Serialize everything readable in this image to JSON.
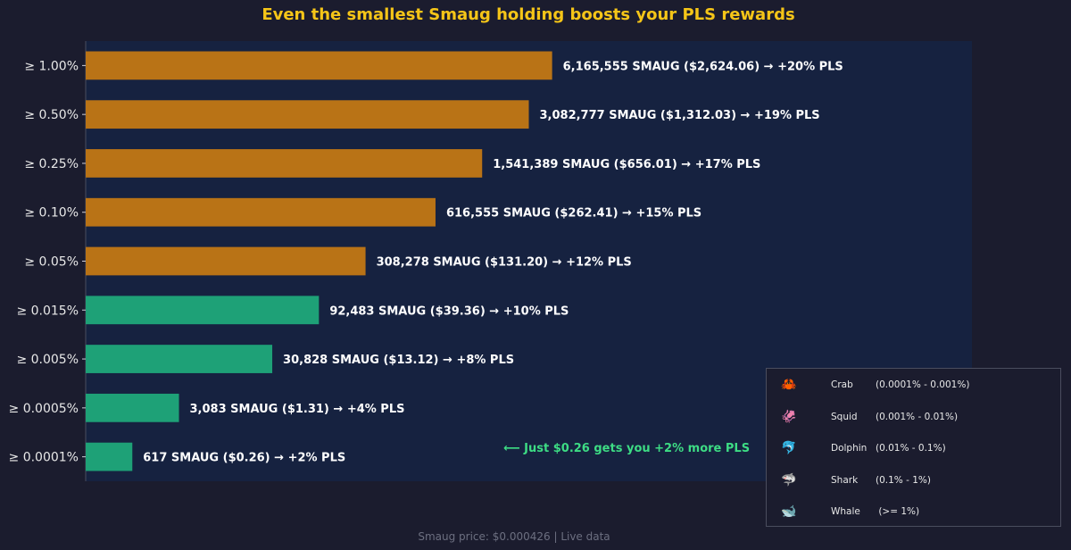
{
  "chart_data": {
    "type": "bar",
    "orientation": "horizontal",
    "title": "Even the smallest Smaug holding boosts your PLS rewards",
    "categories": [
      "≥ 1.00%",
      "≥ 0.50%",
      "≥ 0.25%",
      "≥ 0.10%",
      "≥ 0.05%",
      "≥ 0.015%",
      "≥ 0.005%",
      "≥ 0.0005%",
      "≥ 0.0001%"
    ],
    "values": [
      20,
      19,
      17,
      15,
      12,
      10,
      8,
      4,
      2
    ],
    "bar_labels": [
      "6,165,555 SMAUG ($2,624.06)  →  +20% PLS",
      "3,082,777 SMAUG ($1,312.03)  →  +19% PLS",
      "1,541,389 SMAUG ($656.01)  →  +17% PLS",
      "616,555 SMAUG ($262.41)  →  +15% PLS",
      "308,278 SMAUG ($131.20)  →  +12% PLS",
      "92,483 SMAUG ($39.36)  →  +10% PLS",
      "30,828 SMAUG ($13.12)  →  +8% PLS",
      "3,083 SMAUG ($1.31)  →  +4% PLS",
      "617 SMAUG ($0.26)  →  +2% PLS"
    ],
    "bar_colors": [
      "#b97316",
      "#b97316",
      "#b97316",
      "#b97316",
      "#b97316",
      "#1ea177",
      "#1ea177",
      "#1ea177",
      "#1ea177"
    ],
    "xlim": [
      0,
      38
    ],
    "annotation": "⟵  Just $0.26 gets you +2% more PLS",
    "annotation_color": "#3ddc84",
    "plot_background": "#162240",
    "title_color": "#f5c518"
  },
  "legend": {
    "placement": "bottom-right",
    "items": [
      {
        "icon": "🦀",
        "name": "Crab",
        "range": "(0.0001% - 0.001%)"
      },
      {
        "icon": "🦑",
        "name": "Squid",
        "range": "(0.001% - 0.01%)"
      },
      {
        "icon": "🐬",
        "name": "Dolphin",
        "range": "(0.01% - 0.1%)"
      },
      {
        "icon": "🦈",
        "name": "Shark",
        "range": "(0.1% - 1%)"
      },
      {
        "icon": "🐋",
        "name": "Whale",
        "range": " (>= 1%)"
      }
    ]
  },
  "footer": "Smaug price: $0.000426  |  Live data"
}
